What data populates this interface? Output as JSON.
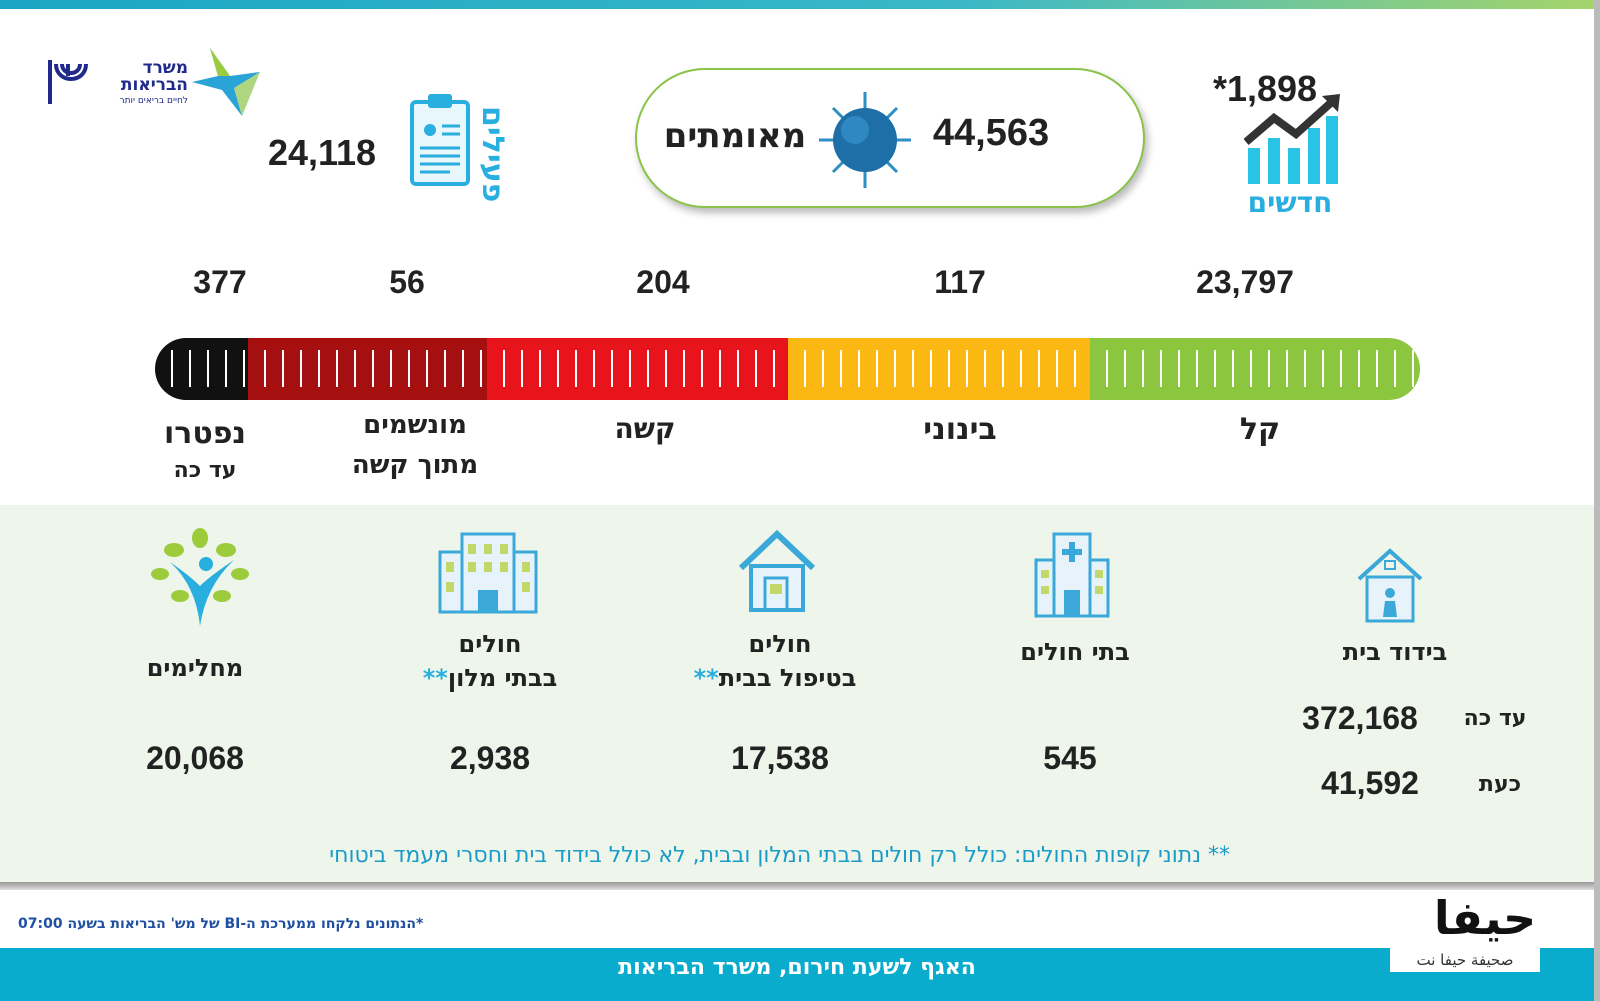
{
  "logo": {
    "ministry_name": "משרד הבריאות",
    "ministry_tagline": "לחיים בריאים יותר"
  },
  "new_cases": {
    "value": "*1,898",
    "label": "חדשים"
  },
  "confirmed": {
    "value": "44,563",
    "label": "מאומתים"
  },
  "active": {
    "value": "24,118",
    "label": "פעילים"
  },
  "severity": [
    {
      "label": "קל",
      "value": "23,797",
      "color": "#8cc63f"
    },
    {
      "label": "בינוני",
      "value": "117",
      "color": "#fbb812"
    },
    {
      "label": "קשה",
      "value": "204",
      "color": "#e8141b"
    },
    {
      "label": "מונשמים",
      "sublabel": "מתוך קשה",
      "value": "56",
      "color": "#a50f10"
    },
    {
      "label": "נפטרו",
      "sublabel": "עד כה",
      "value": "377",
      "color": "#111111"
    }
  ],
  "stats": {
    "home_isolation": {
      "label": "בידוד בית",
      "so_far_label": "עד כה",
      "so_far": "372,168",
      "now_label": "כעת",
      "now": "41,592"
    },
    "hospitals": {
      "label": "בתי חולים",
      "value": "545"
    },
    "home_care": {
      "label1": "חולים",
      "label2": "בטיפול בבית",
      "stars": "**",
      "value": "17,538"
    },
    "hotels": {
      "label1": "חולים",
      "label2": "בבתי מלון",
      "stars": "**",
      "value": "2,938"
    },
    "recovered": {
      "label": "מחלימים",
      "value": "20,068"
    }
  },
  "footnote_hmo": "** נתוני קופות החולים: כולל רק חולים בבתי המלון ובבית, לא כולל בידוד בית וחסרי מעמד ביטוחי",
  "footnote_source": "*הנתונים נלקחו ממערכת ה-BI של מש' הבריאות בשעה 07:00",
  "footer": "האגף לשעת חירום, משרד הבריאות",
  "watermark": {
    "name": "حيفا",
    "sub": "صحيفة حيفا نت"
  }
}
